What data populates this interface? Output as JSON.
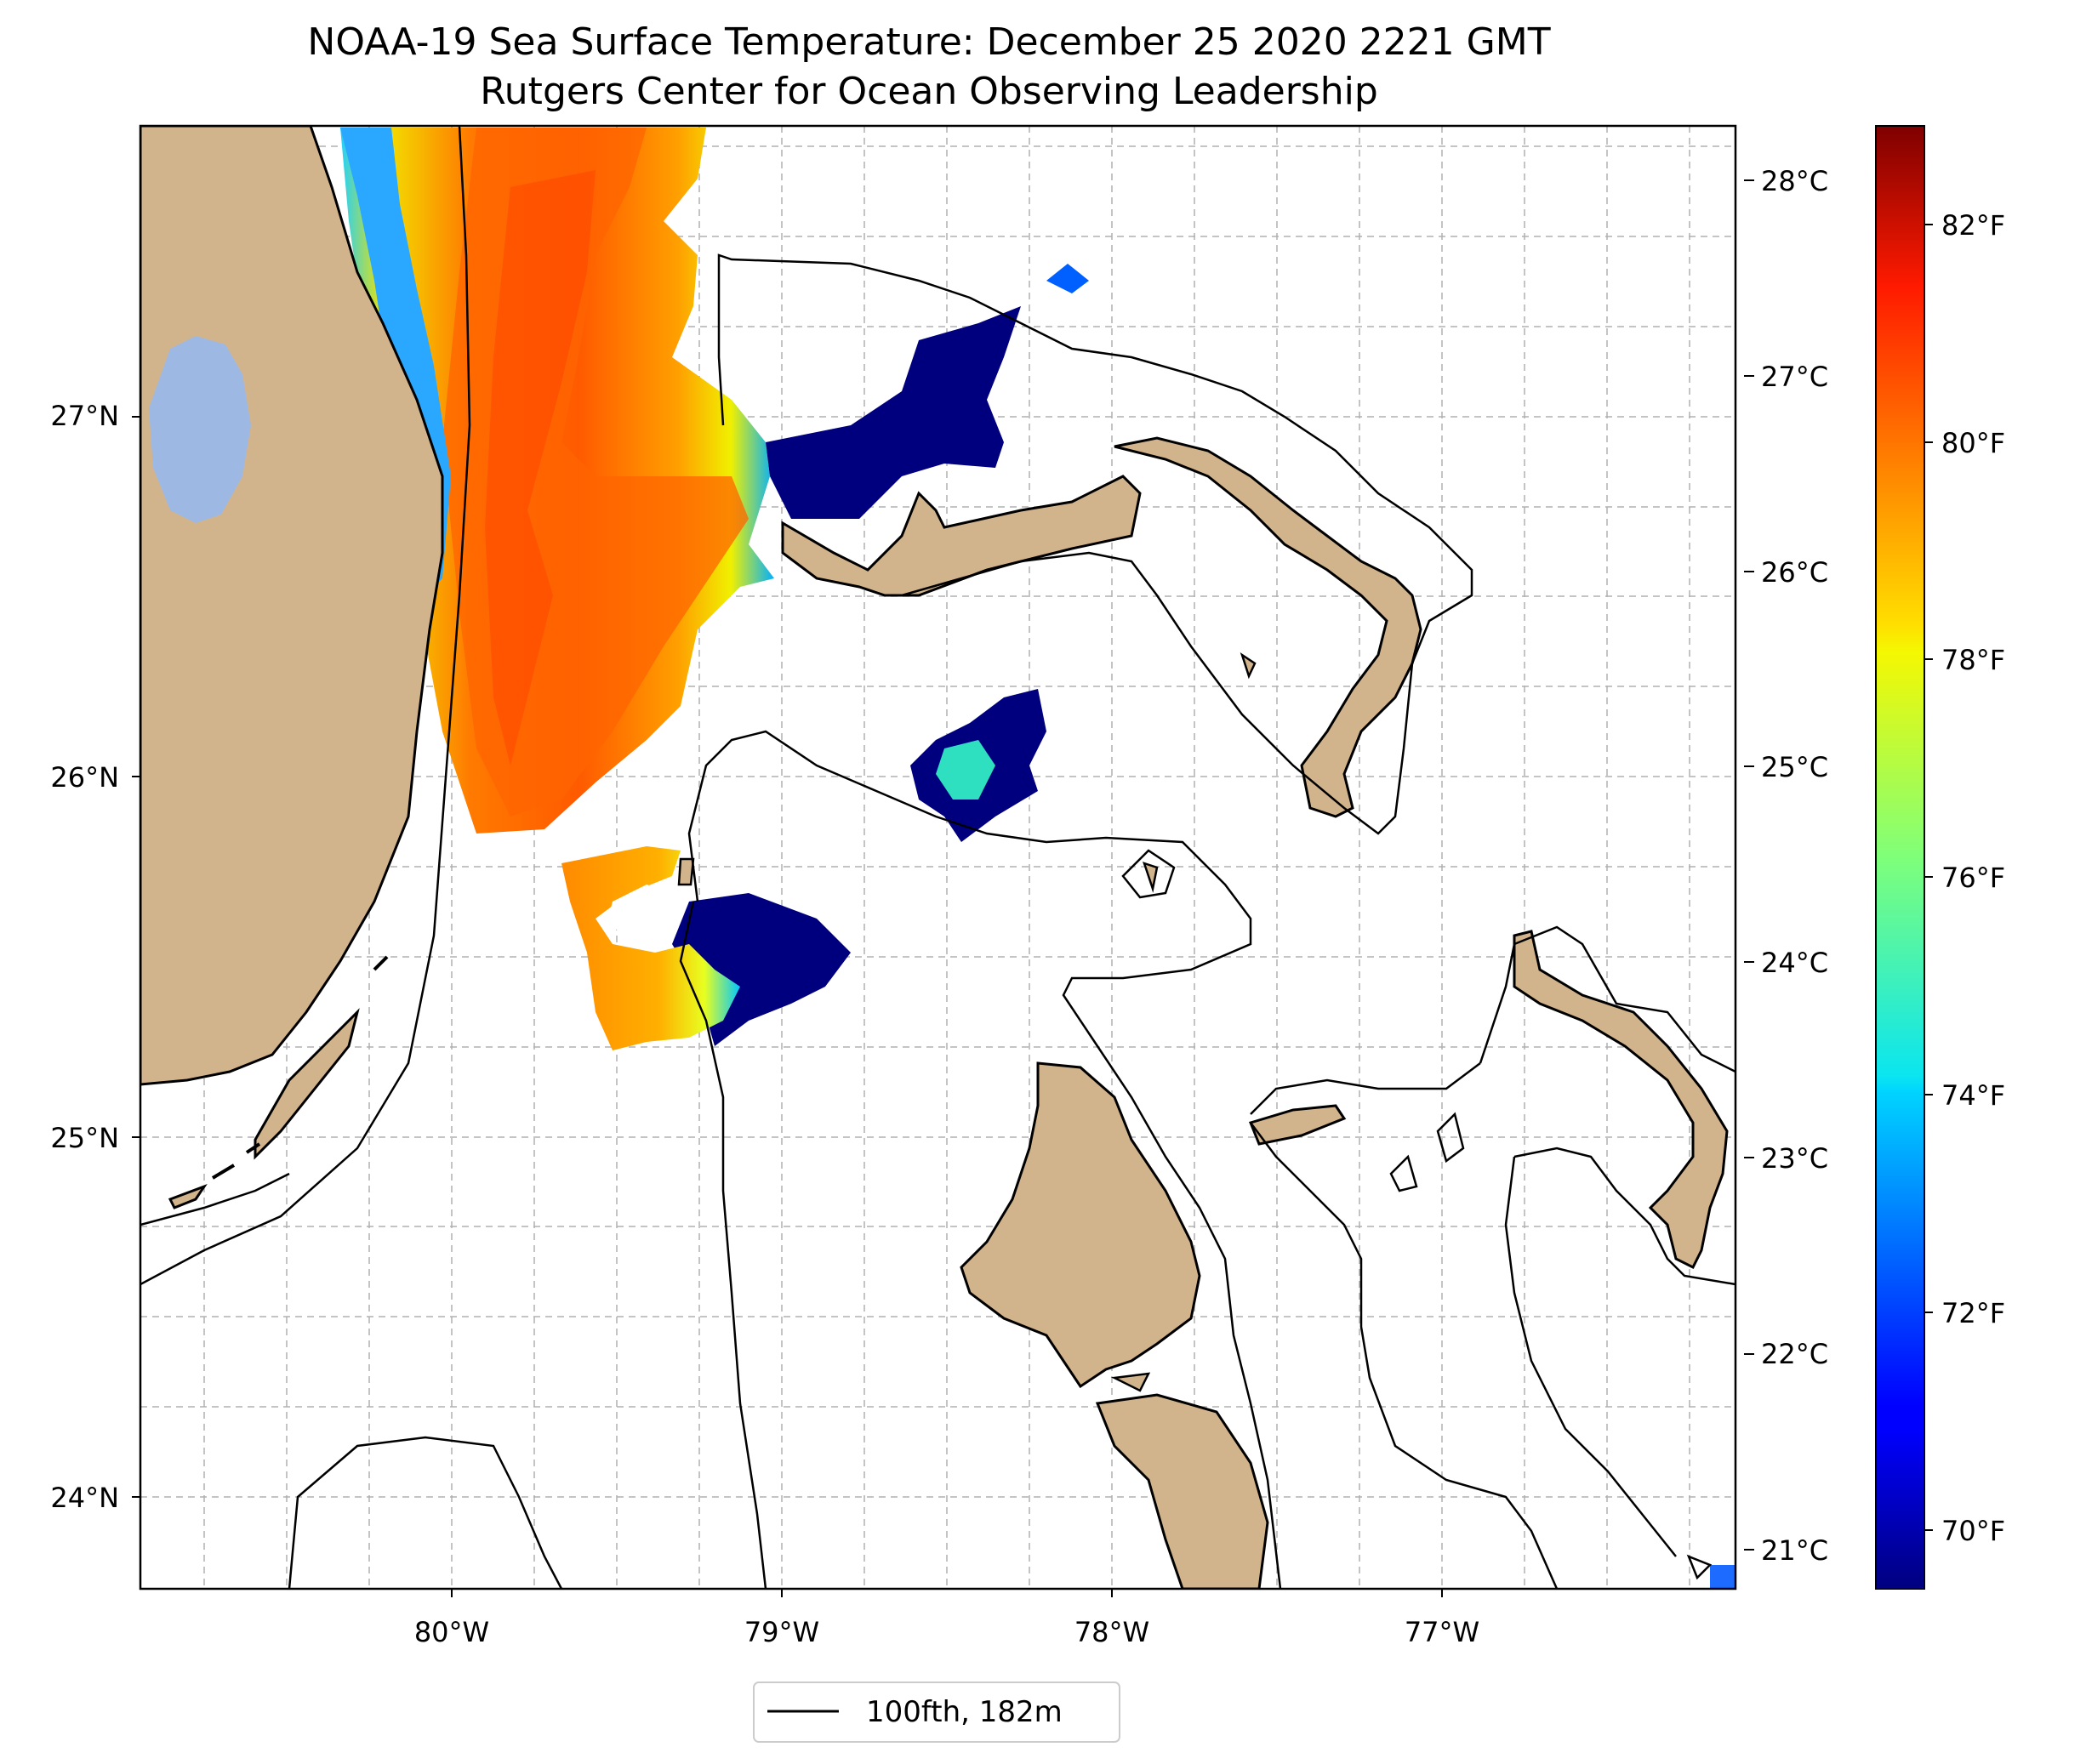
{
  "title": {
    "line1": "NOAA-19 Sea Surface Temperature: December 25 2020 2221 GMT",
    "line2": "Rutgers Center for Ocean Observing Leadership"
  },
  "map": {
    "lat_range": [
      23.73,
      27.8
    ],
    "lon_range": [
      -80.95,
      -76.1
    ],
    "lat_ticks": [
      "24°N",
      "25°N",
      "26°N",
      "27°N"
    ],
    "lon_ticks": [
      "80°W",
      "79°W",
      "78°W",
      "77°W"
    ],
    "grid": true,
    "land_color": "#d2b48c",
    "lake_color": "#9db9e3"
  },
  "colorbar": {
    "colormap": "jet",
    "range_c": [
      20.8,
      28.3
    ],
    "celsius_ticks": [
      "21°C",
      "22°C",
      "23°C",
      "24°C",
      "25°C",
      "26°C",
      "27°C",
      "28°C"
    ],
    "fahrenheit_ticks": [
      "70°F",
      "72°F",
      "74°F",
      "76°F",
      "78°F",
      "80°F",
      "82°F"
    ]
  },
  "legend": {
    "entries": [
      {
        "label": "100fth, 182m",
        "style": "solid-black-line"
      }
    ],
    "placement": "bottom-center"
  },
  "colors": {
    "contour": "#000000",
    "grid": "#b0b0b0"
  }
}
